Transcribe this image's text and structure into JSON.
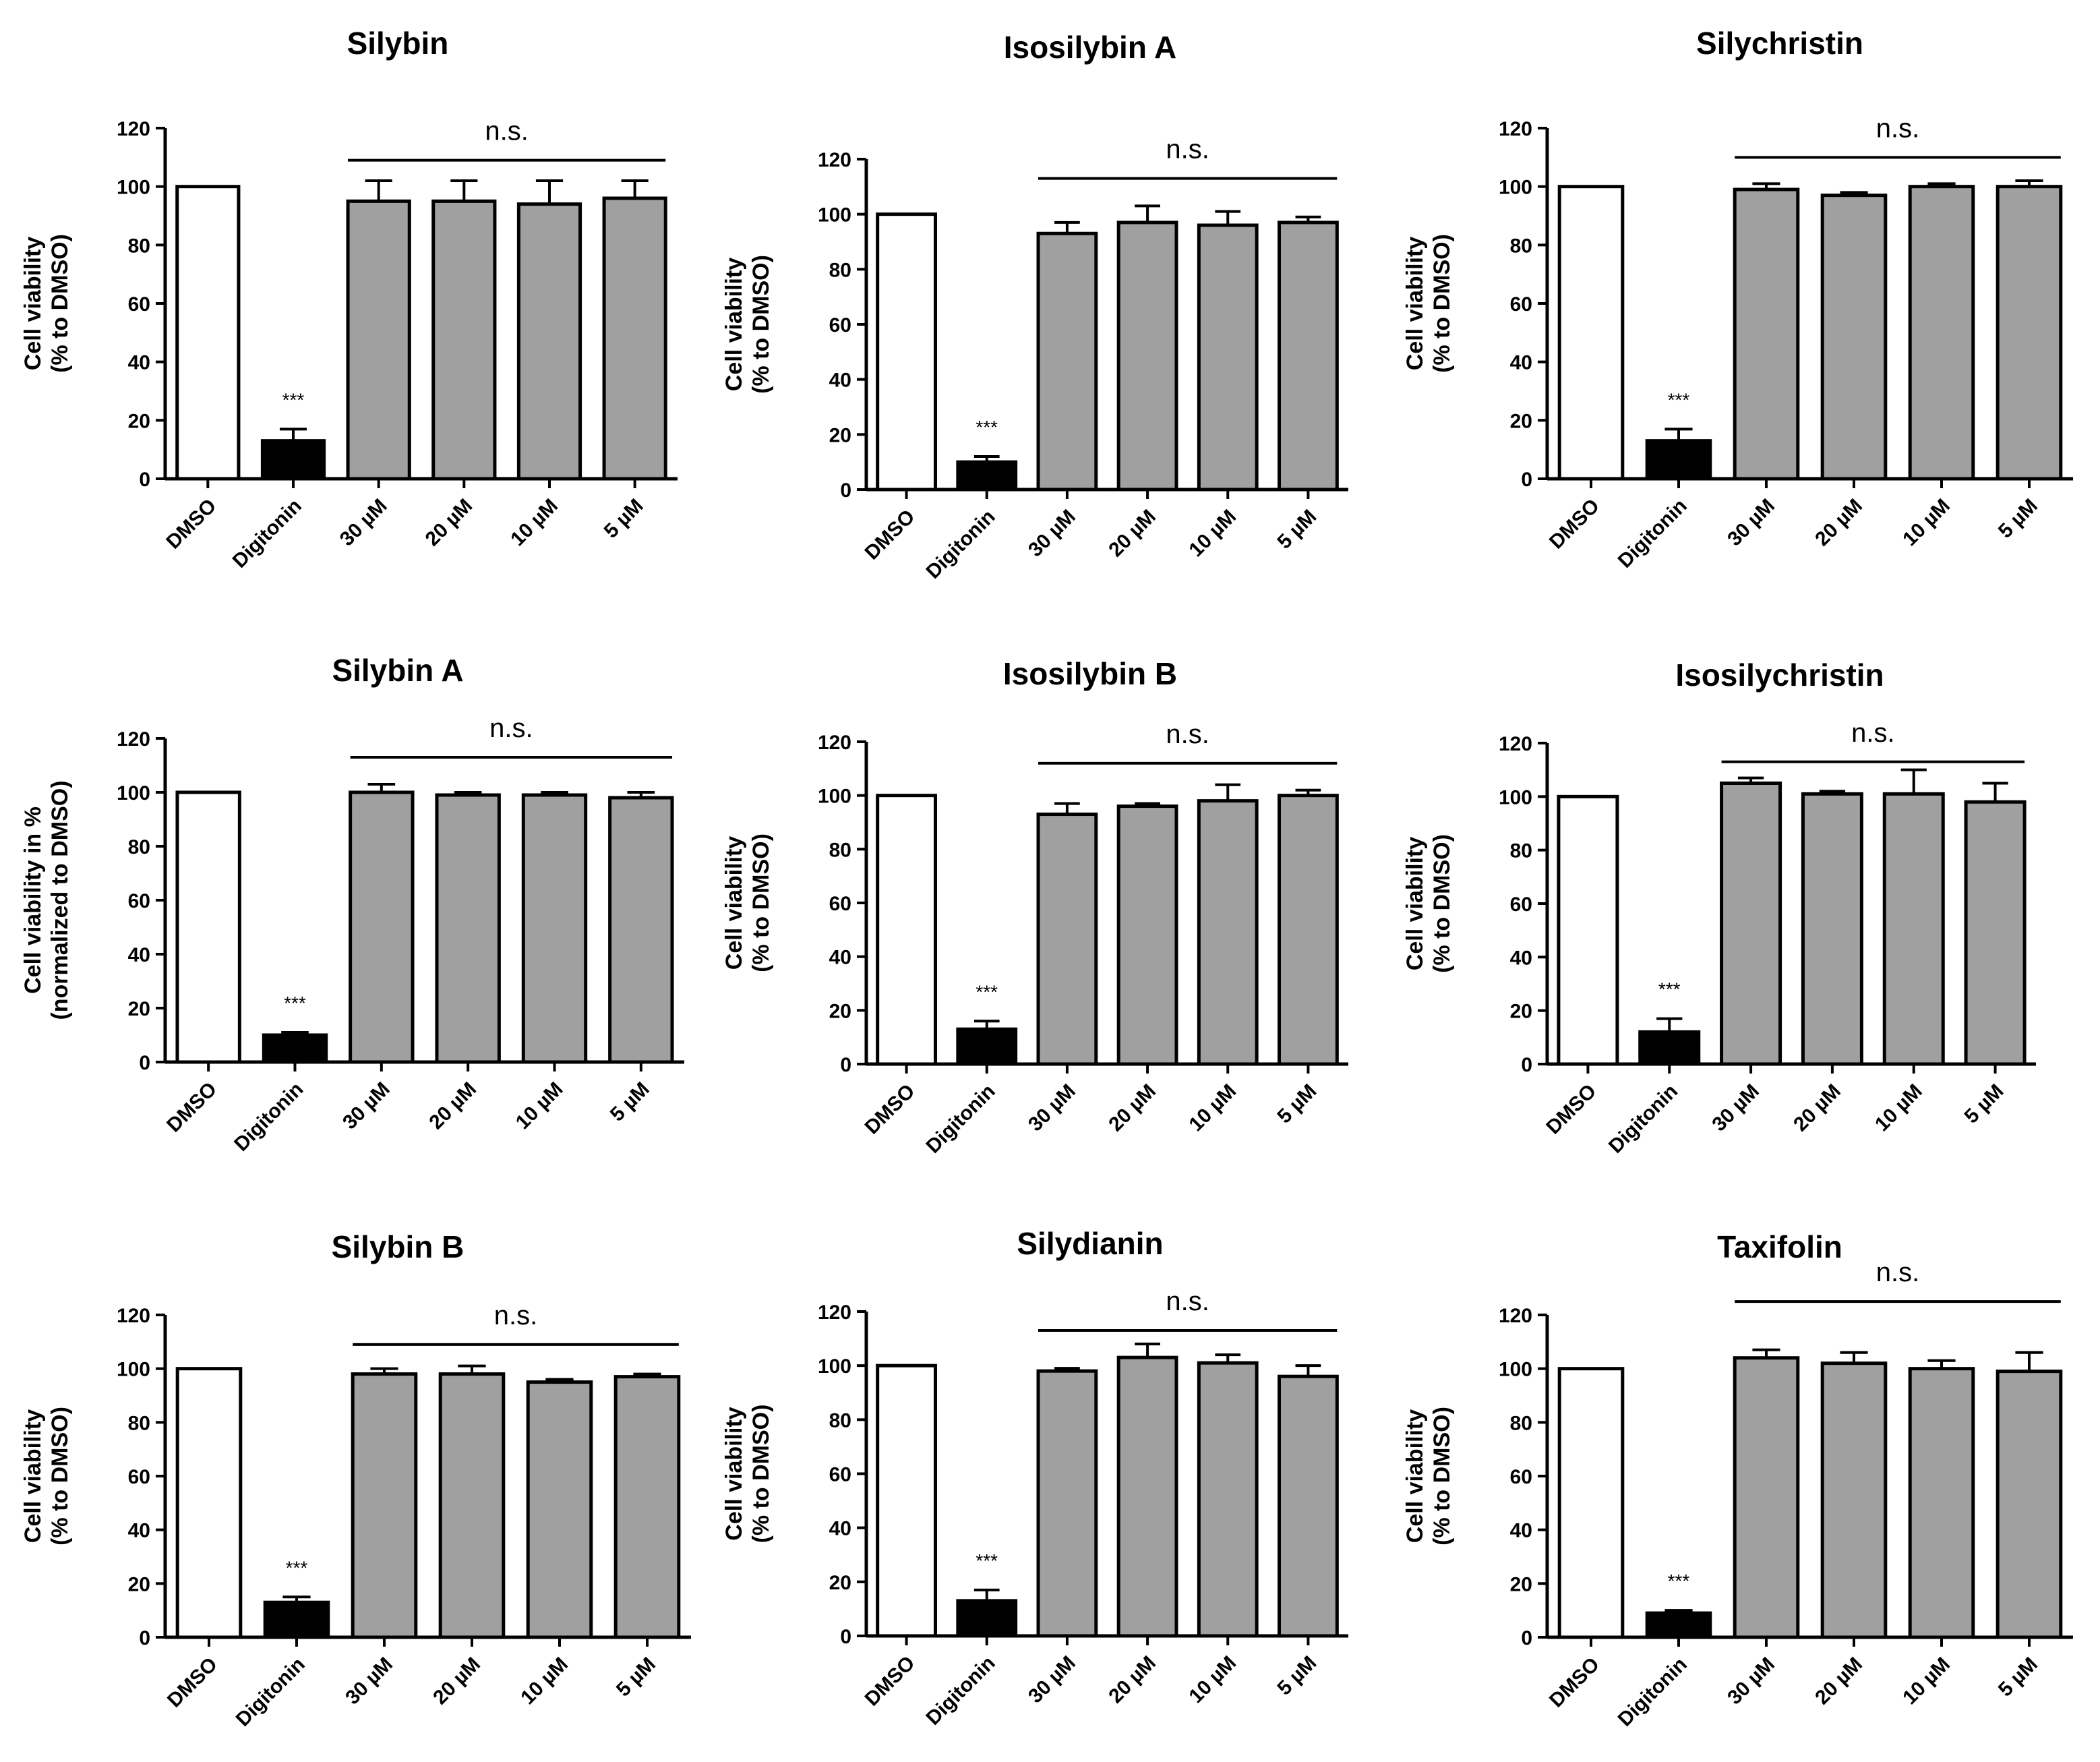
{
  "chart_data": [
    {
      "type": "bar",
      "title": "Silybin",
      "ylabel": [
        "Cell viability",
        "(% to DMSO)"
      ],
      "ylim": [
        0,
        120
      ],
      "yticks": [
        0,
        20,
        40,
        60,
        80,
        100,
        120
      ],
      "categories": [
        "DMSO",
        "Digitonin",
        "30 µM",
        "20 µM",
        "10 µM",
        "5 µM"
      ],
      "values": [
        100,
        13,
        95,
        95,
        94,
        96
      ],
      "errors": [
        0,
        4,
        7,
        7,
        8,
        6
      ],
      "bar_colors": [
        "#ffffff",
        "#000000",
        "#a0a0a0",
        "#a0a0a0",
        "#a0a0a0",
        "#a0a0a0"
      ],
      "significance": [
        {
          "category": "Digitonin",
          "label": "***"
        }
      ],
      "ns_bracket": {
        "label": "n.s.",
        "from": "30 µM",
        "to": "5 µM",
        "y": 109
      }
    },
    {
      "type": "bar",
      "title": "Isosilybin A",
      "ylabel": [
        "Cell viability",
        "(% to DMSO)"
      ],
      "ylim": [
        0,
        120
      ],
      "yticks": [
        0,
        20,
        40,
        60,
        80,
        100,
        120
      ],
      "categories": [
        "DMSO",
        "Digitonin",
        "30 µM",
        "20 µM",
        "10 µM",
        "5 µM"
      ],
      "values": [
        100,
        10,
        93,
        97,
        96,
        97
      ],
      "errors": [
        0,
        2,
        4,
        6,
        5,
        2
      ],
      "bar_colors": [
        "#ffffff",
        "#000000",
        "#a0a0a0",
        "#a0a0a0",
        "#a0a0a0",
        "#a0a0a0"
      ],
      "significance": [
        {
          "category": "Digitonin",
          "label": "***"
        }
      ],
      "ns_bracket": {
        "label": "n.s.",
        "from": "30 µM",
        "to": "5 µM",
        "y": 113
      }
    },
    {
      "type": "bar",
      "title": "Silychristin",
      "ylabel": [
        "Cell viability",
        "(% to DMSO)"
      ],
      "ylim": [
        0,
        120
      ],
      "yticks": [
        0,
        20,
        40,
        60,
        80,
        100,
        120
      ],
      "categories": [
        "DMSO",
        "Digitonin",
        "30 µM",
        "20 µM",
        "10 µM",
        "5 µM"
      ],
      "values": [
        100,
        13,
        99,
        97,
        100,
        100
      ],
      "errors": [
        0,
        4,
        2,
        1,
        1,
        2
      ],
      "bar_colors": [
        "#ffffff",
        "#000000",
        "#a0a0a0",
        "#a0a0a0",
        "#a0a0a0",
        "#a0a0a0"
      ],
      "significance": [
        {
          "category": "Digitonin",
          "label": "***"
        }
      ],
      "ns_bracket": {
        "label": "n.s.",
        "from": "30 µM",
        "to": "5 µM",
        "y": 110
      }
    },
    {
      "type": "bar",
      "title": "Silybin A",
      "ylabel": [
        "Cell viability in %",
        "(normalized to DMSO)"
      ],
      "ylim": [
        0,
        120
      ],
      "yticks": [
        0,
        20,
        40,
        60,
        80,
        100,
        120
      ],
      "categories": [
        "DMSO",
        "Digitonin",
        "30 µM",
        "20 µM",
        "10 µM",
        "5 µM"
      ],
      "values": [
        100,
        10,
        100,
        99,
        99,
        98
      ],
      "errors": [
        0,
        1,
        3,
        1,
        1,
        2
      ],
      "bar_colors": [
        "#ffffff",
        "#000000",
        "#a0a0a0",
        "#a0a0a0",
        "#a0a0a0",
        "#a0a0a0"
      ],
      "significance": [
        {
          "category": "Digitonin",
          "label": "***"
        }
      ],
      "ns_bracket": {
        "label": "n.s.",
        "from": "30 µM",
        "to": "5 µM",
        "y": 113
      }
    },
    {
      "type": "bar",
      "title": "Isosilybin B",
      "ylabel": [
        "Cell viability",
        "(% to DMSO)"
      ],
      "ylim": [
        0,
        120
      ],
      "yticks": [
        0,
        20,
        40,
        60,
        80,
        100,
        120
      ],
      "categories": [
        "DMSO",
        "Digitonin",
        "30 µM",
        "20 µM",
        "10 µM",
        "5 µM"
      ],
      "values": [
        100,
        13,
        93,
        96,
        98,
        100
      ],
      "errors": [
        0,
        3,
        4,
        1,
        6,
        2
      ],
      "bar_colors": [
        "#ffffff",
        "#000000",
        "#a0a0a0",
        "#a0a0a0",
        "#a0a0a0",
        "#a0a0a0"
      ],
      "significance": [
        {
          "category": "Digitonin",
          "label": "***"
        }
      ],
      "ns_bracket": {
        "label": "n.s.",
        "from": "30 µM",
        "to": "5 µM",
        "y": 112
      }
    },
    {
      "type": "bar",
      "title": "Isosilychristin",
      "ylabel": [
        "Cell viability",
        "(% to DMSO)"
      ],
      "ylim": [
        0,
        120
      ],
      "yticks": [
        0,
        20,
        40,
        60,
        80,
        100,
        120
      ],
      "categories": [
        "DMSO",
        "Digitonin",
        "30 µM",
        "20 µM",
        "10 µM",
        "5 µM"
      ],
      "values": [
        100,
        12,
        105,
        101,
        101,
        98
      ],
      "errors": [
        0,
        5,
        2,
        1,
        9,
        7
      ],
      "bar_colors": [
        "#ffffff",
        "#000000",
        "#a0a0a0",
        "#a0a0a0",
        "#a0a0a0",
        "#a0a0a0"
      ],
      "significance": [
        {
          "category": "Digitonin",
          "label": "***"
        }
      ],
      "ns_bracket": {
        "label": "n.s.",
        "from": "30 µM",
        "to": "5 µM",
        "y": 113
      }
    },
    {
      "type": "bar",
      "title": "Silybin B",
      "ylabel": [
        "Cell viability",
        "(% to DMSO)"
      ],
      "ylim": [
        0,
        120
      ],
      "yticks": [
        0,
        20,
        40,
        60,
        80,
        100,
        120
      ],
      "categories": [
        "DMSO",
        "Digitonin",
        "30 µM",
        "20 µM",
        "10 µM",
        "5 µM"
      ],
      "values": [
        100,
        13,
        98,
        98,
        95,
        97
      ],
      "errors": [
        0,
        2,
        2,
        3,
        1,
        1
      ],
      "bar_colors": [
        "#ffffff",
        "#000000",
        "#a0a0a0",
        "#a0a0a0",
        "#a0a0a0",
        "#a0a0a0"
      ],
      "significance": [
        {
          "category": "Digitonin",
          "label": "***"
        }
      ],
      "ns_bracket": {
        "label": "n.s.",
        "from": "30 µM",
        "to": "5 µM",
        "y": 109
      }
    },
    {
      "type": "bar",
      "title": "Silydianin",
      "ylabel": [
        "Cell viability",
        "(% to DMSO)"
      ],
      "ylim": [
        0,
        120
      ],
      "yticks": [
        0,
        20,
        40,
        60,
        80,
        100,
        120
      ],
      "categories": [
        "DMSO",
        "Digitonin",
        "30 µM",
        "20 µM",
        "10 µM",
        "5 µM"
      ],
      "values": [
        100,
        13,
        98,
        103,
        101,
        96
      ],
      "errors": [
        0,
        4,
        1,
        5,
        3,
        4
      ],
      "bar_colors": [
        "#ffffff",
        "#000000",
        "#a0a0a0",
        "#a0a0a0",
        "#a0a0a0",
        "#a0a0a0"
      ],
      "significance": [
        {
          "category": "Digitonin",
          "label": "***"
        }
      ],
      "ns_bracket": {
        "label": "n.s.",
        "from": "30 µM",
        "to": "5 µM",
        "y": 113
      }
    },
    {
      "type": "bar",
      "title": "Taxifolin",
      "ylabel": [
        "Cell viability",
        "(% to DMSO)"
      ],
      "ylim": [
        0,
        120
      ],
      "yticks": [
        0,
        20,
        40,
        60,
        80,
        100,
        120
      ],
      "categories": [
        "DMSO",
        "Digitonin",
        "30 µM",
        "20 µM",
        "10 µM",
        "5 µM"
      ],
      "values": [
        100,
        9,
        104,
        102,
        100,
        99
      ],
      "errors": [
        0,
        1,
        3,
        4,
        3,
        7
      ],
      "bar_colors": [
        "#ffffff",
        "#000000",
        "#a0a0a0",
        "#a0a0a0",
        "#a0a0a0",
        "#a0a0a0"
      ],
      "significance": [
        {
          "category": "Digitonin",
          "label": "***"
        }
      ],
      "ns_bracket": {
        "label": "n.s.",
        "from": "30 µM",
        "to": "5 µM",
        "y": 125
      }
    }
  ]
}
